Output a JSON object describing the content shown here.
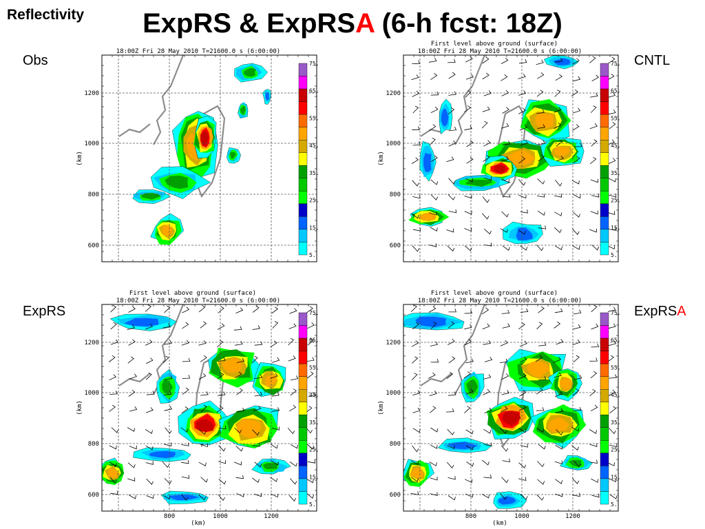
{
  "slide": {
    "label": "Reflectivity",
    "title_a": "ExpRS & ExpRS",
    "title_red": "A",
    "title_b": " (6-h fcst: 18Z)",
    "accent_color": "#ff0000"
  },
  "colorbar": {
    "labels": [
      "75.",
      "65.",
      "55.",
      "45.",
      "35.",
      "25.",
      "15.",
      "5."
    ],
    "colors": [
      "#9a59c8",
      "#ff00ff",
      "#c80000",
      "#ff0000",
      "#ff6b00",
      "#ffa500",
      "#d4aa00",
      "#ffff00",
      "#00a000",
      "#00c800",
      "#00ff00",
      "#0000c8",
      "#0064ff",
      "#00c8ff",
      "#00ffff"
    ]
  },
  "panels": [
    {
      "id": "obs",
      "label": "Obs",
      "label_red": "",
      "header": "",
      "time_line": "18:00Z Fri 28 May 2010      T=21600.0 s (6:00:00)",
      "y_ticks": [
        "1200",
        "1000",
        "800",
        "600"
      ],
      "y_unit": "(km)",
      "x_ticks": [],
      "x_unit": "",
      "has_winds": false
    },
    {
      "id": "cntl",
      "label": "CNTL",
      "label_red": "",
      "header": "First level above ground (surface)",
      "time_line": "18:00Z Fri 28 May 2010      T=21600.0 s (6:00:00)",
      "y_ticks": [
        "1200",
        "1000",
        "800",
        "600"
      ],
      "y_unit": "(km)",
      "x_ticks": [],
      "x_unit": "",
      "has_winds": true
    },
    {
      "id": "exprs",
      "label": "ExpRS",
      "label_red": "",
      "header": "First level above ground (surface)",
      "time_line": "18:00Z Fri 28 May 2010      T=21600.0 s (6:00:00)",
      "y_ticks": [
        "1200",
        "1000",
        "800",
        "600"
      ],
      "y_unit": "(km)",
      "x_ticks": [
        "800",
        "1000",
        "1200"
      ],
      "x_unit": "(km)",
      "has_winds": true
    },
    {
      "id": "exprsa",
      "label": "ExpRS",
      "label_red": "A",
      "header": "First level above ground (surface)",
      "time_line": "18:00Z Fri 28 May 2010      T=21600.0 s (6:00:00)",
      "y_ticks": [
        "1200",
        "1000",
        "800",
        "600"
      ],
      "y_unit": "(km)",
      "x_ticks": [
        "800",
        "1000",
        "1200"
      ],
      "x_unit": "(km)",
      "has_winds": true
    }
  ]
}
